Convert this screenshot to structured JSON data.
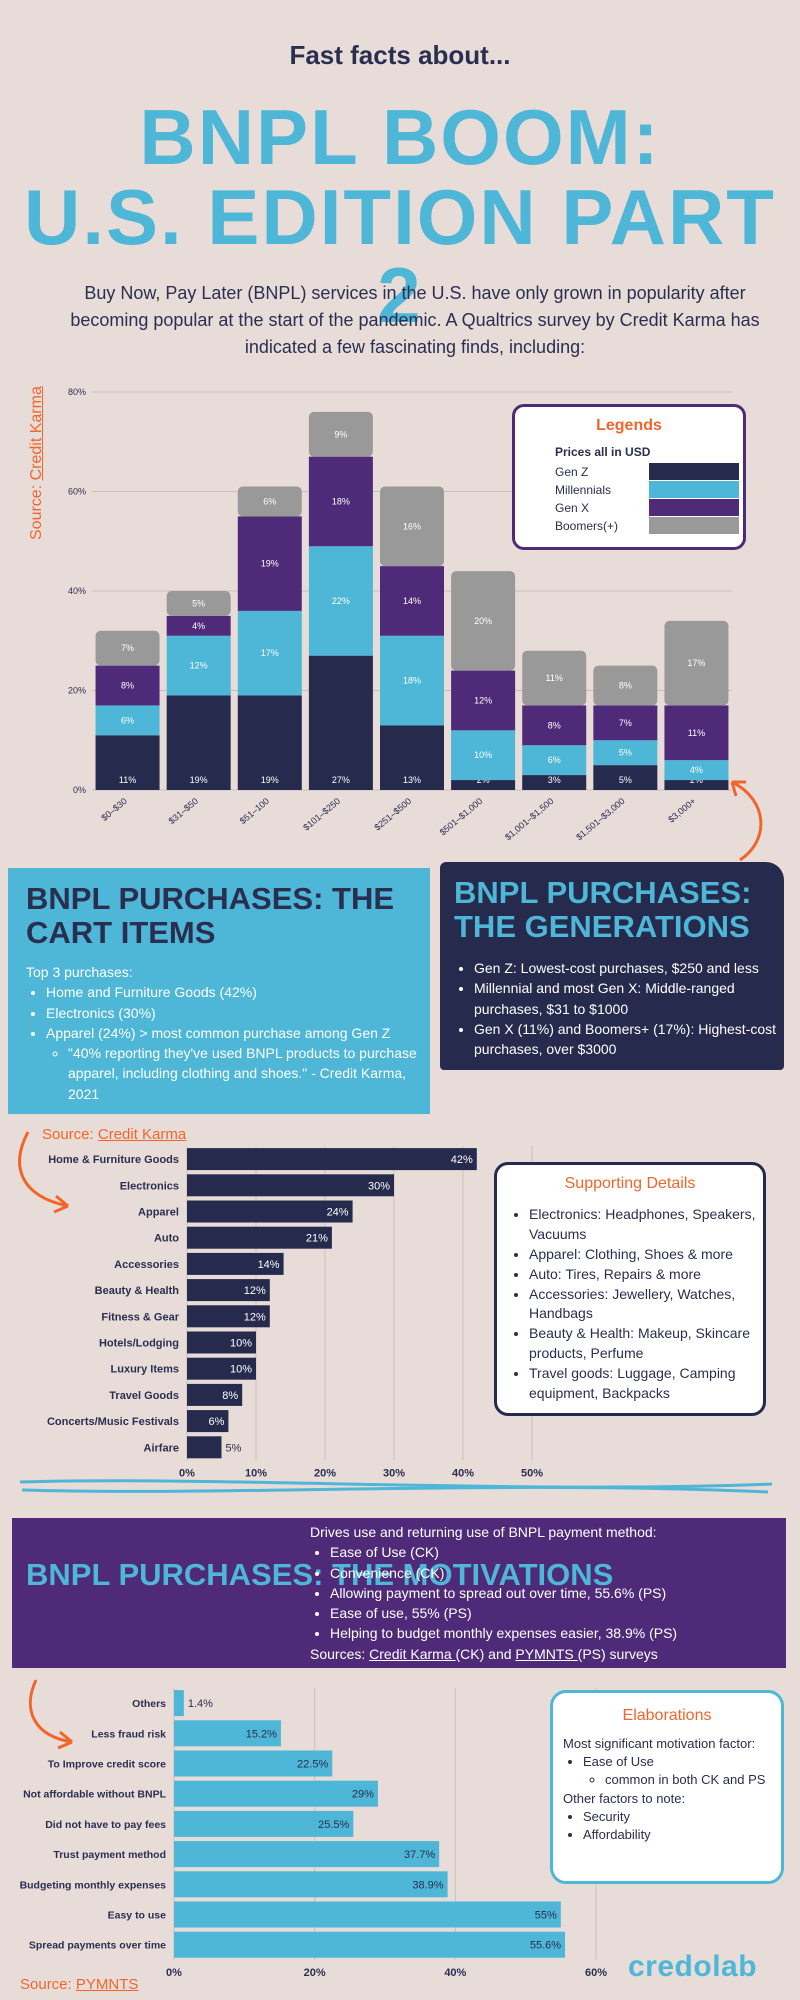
{
  "header": {
    "subtitle": "Fast facts about...",
    "title_line1": "BNPL BOOM:",
    "title_line2": "U.S. EDITION PART 2",
    "intro": "Buy Now, Pay Later (BNPL) services in the U.S. have only grown in popularity after becoming popular at the start of the pandemic. A Qualtrics survey by Credit Karma has indicated a few fascinating finds, including:"
  },
  "colors": {
    "background": "#e8dcd9",
    "navy": "#262a4c",
    "cyan": "#4eb6d6",
    "purple": "#4e2a78",
    "gray": "#999999",
    "orange": "#f0662a"
  },
  "source_credit_karma": {
    "prefix": "Source: ",
    "link": "Credit Karma"
  },
  "source_pymnts": {
    "prefix": "Source: ",
    "link": "PYMNTS"
  },
  "legend": {
    "title": "Legends",
    "note": "Prices all in USD",
    "items": [
      {
        "label": "Gen Z",
        "color": "#262a4c"
      },
      {
        "label": "Millennials",
        "color": "#4eb6d6"
      },
      {
        "label": "Gen X",
        "color": "#4e2a78"
      },
      {
        "label": "Boomers(+)",
        "color": "#999999"
      }
    ]
  },
  "cart": {
    "title": "BNPL PURCHASES: THE CART ITEMS",
    "intro": "Top 3 purchases:",
    "items": [
      "Home and Furniture Goods (42%)",
      "Electronics (30%)",
      "Apparel (24%) > most common purchase among Gen Z"
    ],
    "quote": "\"40% reporting they've used BNPL products to purchase apparel, including clothing and shoes.\" - Credit Karma, 2021"
  },
  "generations": {
    "title": "BNPL PURCHASES: THE GENERATIONS",
    "items": [
      "Gen Z: Lowest-cost purchases, $250 and less",
      "Millennial and most Gen X: Middle-ranged purchases, $31 to $1000",
      "Gen X (11%) and Boomers+ (17%): Highest-cost purchases, over $3000"
    ]
  },
  "supporting": {
    "title": "Supporting Details",
    "items": [
      "Electronics: Headphones, Speakers, Vacuums",
      "Apparel: Clothing, Shoes & more",
      "Auto: Tires, Repairs & more",
      "Accessories: Jewellery, Watches, Handbags",
      "Beauty & Health: Makeup, Skincare products, Perfume",
      "Travel goods: Luggage, Camping equipment, Backpacks"
    ]
  },
  "motivations": {
    "title": "BNPL PURCHASES: THE MOTIVATIONS",
    "heading": "Drives use and returning use of BNPL payment method:",
    "items": [
      "Ease of Use (CK)",
      "Convenience (CK)",
      "Allowing payment to spread out over time, 55.6% (PS)",
      "Ease of use, 55% (PS)",
      "Helping to budget monthly expenses easier, 38.9% (PS)"
    ],
    "sources_prefix": "Sources: ",
    "sources_ck": "Credit Karma ",
    "sources_mid": "(CK) and ",
    "sources_ps": "PYMNTS ",
    "sources_suffix": "(PS) surveys"
  },
  "elaborations": {
    "title": "Elaborations",
    "line1": "Most significant motivation factor:",
    "item1": "Ease of Use",
    "subitem1": "common in both CK and PS",
    "line2": "Other factors to note:",
    "items2": [
      "Security",
      "Affordability"
    ]
  },
  "logo": "credolab",
  "chart_data": [
    {
      "type": "bar",
      "stacked": true,
      "categories": [
        "$0–$30",
        "$31–$50",
        "$51–100",
        "$101–$250",
        "$251–$500",
        "$501–$1,000",
        "$1,001–$1,500",
        "$1,501–$3,000",
        "$3,000+"
      ],
      "series": [
        {
          "name": "Gen Z",
          "color": "#262a4c",
          "values": [
            11,
            19,
            19,
            27,
            13,
            2,
            3,
            5,
            2
          ],
          "labels": [
            "11%",
            "19%",
            "19%",
            "27%",
            "13%",
            "2%",
            "3%",
            "5%",
            "2%"
          ]
        },
        {
          "name": "Millennials",
          "color": "#4eb6d6",
          "values": [
            6,
            12,
            17,
            22,
            18,
            10,
            6,
            5,
            4
          ],
          "labels": [
            "6%",
            "12%",
            "17%",
            "22%",
            "18%",
            "10%",
            "6%",
            "5%",
            "4%"
          ]
        },
        {
          "name": "Gen X",
          "color": "#4e2a78",
          "values": [
            8,
            4,
            19,
            18,
            14,
            12,
            8,
            7,
            11
          ],
          "labels": [
            "8%",
            "4%",
            "19%",
            "18%",
            "14%",
            "12%",
            "8%",
            "7%",
            "11%"
          ]
        },
        {
          "name": "Boomers(+)",
          "color": "#999999",
          "values": [
            7,
            5,
            6,
            9,
            16,
            20,
            11,
            8,
            17
          ],
          "labels": [
            "7%",
            "5%",
            "6%",
            "9%",
            "16%",
            "20%",
            "11%",
            "8%",
            "17%"
          ]
        }
      ],
      "ylim": [
        0,
        80
      ],
      "yticks": [
        "0%",
        "20%",
        "40%",
        "60%",
        "80%"
      ],
      "grid": true
    },
    {
      "type": "bar",
      "orientation": "horizontal",
      "color": "#262a4c",
      "categories": [
        "Home & Furniture Goods",
        "Electronics",
        "Apparel",
        "Auto",
        "Accessories",
        "Beauty & Health",
        "Fitness & Gear",
        "Hotels/Lodging",
        "Luxury Items",
        "Travel Goods",
        "Concerts/Music Festivals",
        "Airfare"
      ],
      "values": [
        42,
        30,
        24,
        21,
        14,
        12,
        12,
        10,
        10,
        8,
        6,
        5
      ],
      "labels": [
        "42%",
        "30%",
        "24%",
        "21%",
        "14%",
        "12%",
        "12%",
        "10%",
        "10%",
        "8%",
        "6%",
        "5%"
      ],
      "xlim": [
        0,
        50
      ],
      "xticks": [
        "0%",
        "10%",
        "20%",
        "30%",
        "40%",
        "50%"
      ],
      "grid": true
    },
    {
      "type": "bar",
      "orientation": "horizontal",
      "color": "#4eb6d6",
      "categories": [
        "Others",
        "Less fraud risk",
        "To Improve credit score",
        "Not affordable without BNPL",
        "Did not have to pay fees",
        "Trust payment method",
        "Budgeting monthly expenses",
        "Easy to use",
        "Spread payments over time"
      ],
      "values": [
        1.4,
        15.2,
        22.5,
        29,
        25.5,
        37.7,
        38.9,
        55,
        55.6
      ],
      "labels": [
        "1.4%",
        "15.2%",
        "22.5%",
        "29%",
        "25.5%",
        "37.7%",
        "38.9%",
        "55%",
        "55.6%"
      ],
      "xlim": [
        0,
        60
      ],
      "xticks": [
        "0%",
        "20%",
        "40%",
        "60%"
      ],
      "grid": true
    }
  ]
}
